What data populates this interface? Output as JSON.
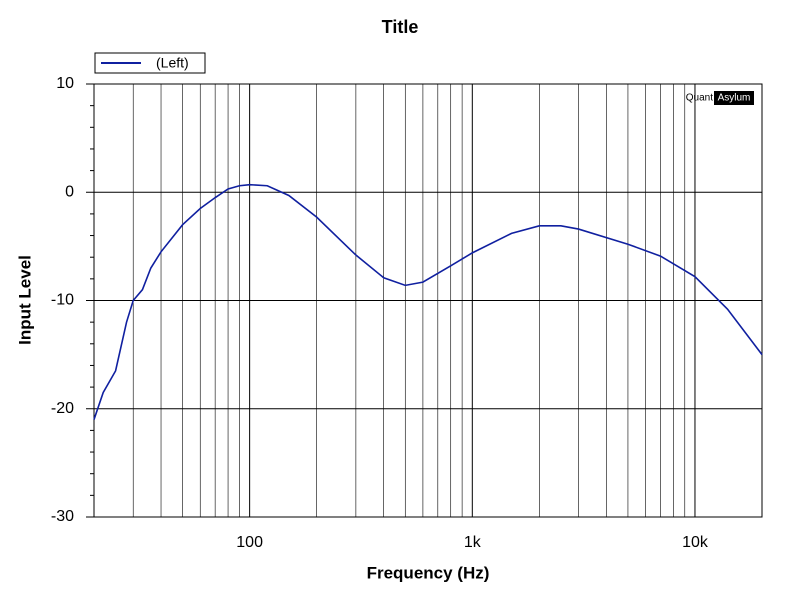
{
  "chart_data": {
    "type": "line",
    "title": "Title",
    "x_label": "Frequency (Hz)",
    "y_label": "Input Level",
    "x_log": true,
    "grid": true,
    "legend": "top-left",
    "watermark": {
      "left": "Quant",
      "right": "Asylum"
    },
    "x": [
      20,
      22,
      25,
      28,
      30,
      33,
      36,
      40,
      50,
      60,
      70,
      80,
      90,
      100,
      120,
      150,
      200,
      300,
      400,
      500,
      600,
      800,
      1000,
      1500,
      2000,
      2500,
      3000,
      5000,
      7000,
      10000,
      14000,
      20000
    ],
    "series": [
      {
        "name": "(Left)",
        "color": "#1020a0",
        "values": [
          -21,
          -18.5,
          -16.5,
          -12,
          -10,
          -9,
          -7,
          -5.5,
          -3,
          -1.5,
          -0.5,
          0.3,
          0.6,
          0.7,
          0.6,
          -0.3,
          -2.3,
          -5.8,
          -7.9,
          -8.6,
          -8.3,
          -6.8,
          -5.6,
          -3.8,
          -3.1,
          -3.1,
          -3.4,
          -4.8,
          -5.9,
          -7.8,
          -10.8,
          -15
        ]
      }
    ],
    "xlim": [
      20,
      20000
    ],
    "xticks": [
      100,
      {
        "value": 1000,
        "label": "1k"
      },
      {
        "value": 10000,
        "label": "10k"
      }
    ],
    "x_minor_ticks": [
      30,
      40,
      50,
      60,
      70,
      80,
      90,
      200,
      300,
      400,
      500,
      600,
      700,
      800,
      900,
      2000,
      3000,
      4000,
      5000,
      6000,
      7000,
      8000,
      9000
    ],
    "ylim": [
      -30,
      10
    ],
    "yticks": [
      -30,
      -20,
      -10,
      0,
      10
    ],
    "y_minor_ticks": [
      8,
      6,
      4,
      2,
      -2,
      -4,
      -6,
      -8,
      -12,
      -14,
      -16,
      -18,
      -22,
      -24,
      -26,
      -28
    ]
  }
}
